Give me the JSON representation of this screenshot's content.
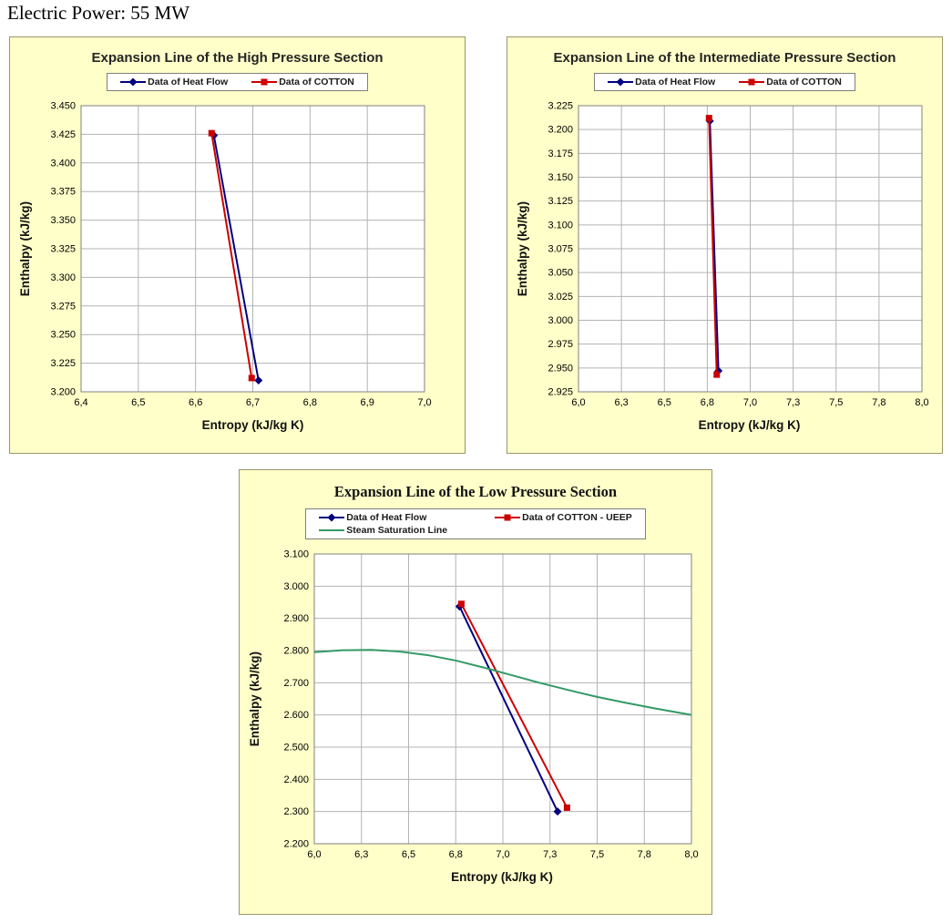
{
  "header": {
    "text": "Electric Power: 55 MW"
  },
  "colors": {
    "panel_bg": "#FFFFC9",
    "panel_border": "#97976B",
    "plot_bg": "#FFFFFF",
    "plot_border": "#808080",
    "grid": "#B3B3B3",
    "heat_flow": "#000080",
    "cotton": "#CC0000",
    "saturation": "#339966",
    "legend_border": "#7F7F7F"
  },
  "chart_data": [
    {
      "type": "line",
      "title": "Expansion Line of the High Pressure Section",
      "xlabel": "Entropy (kJ/kg K)",
      "ylabel": "Enthalpy (kJ/kg)",
      "xlim": [
        6.4,
        7.0
      ],
      "ylim": [
        3200,
        3450
      ],
      "grid": true,
      "legend_position": "top",
      "x_ticks": [
        {
          "v": 6.4,
          "label": "6,4"
        },
        {
          "v": 6.5,
          "label": "6,5"
        },
        {
          "v": 6.6,
          "label": "6,6"
        },
        {
          "v": 6.7,
          "label": "6,7"
        },
        {
          "v": 6.8,
          "label": "6,8"
        },
        {
          "v": 6.9,
          "label": "6,9"
        },
        {
          "v": 7.0,
          "label": "7,0"
        }
      ],
      "y_ticks": [
        {
          "v": 3450,
          "label": "3.450"
        },
        {
          "v": 3425,
          "label": "3.425"
        },
        {
          "v": 3400,
          "label": "3.400"
        },
        {
          "v": 3375,
          "label": "3.375"
        },
        {
          "v": 3350,
          "label": "3.350"
        },
        {
          "v": 3325,
          "label": "3.325"
        },
        {
          "v": 3300,
          "label": "3.300"
        },
        {
          "v": 3275,
          "label": "3.275"
        },
        {
          "v": 3250,
          "label": "3.250"
        },
        {
          "v": 3225,
          "label": "3.225"
        },
        {
          "v": 3200,
          "label": "3.200"
        }
      ],
      "series": [
        {
          "name": "Data of Heat Flow",
          "color": "#000080",
          "marker": "diamond",
          "points": [
            [
              6.632,
              3424
            ],
            [
              6.71,
              3210
            ]
          ]
        },
        {
          "name": "Data of COTTON",
          "color": "#CC0000",
          "marker": "square",
          "points": [
            [
              6.628,
              3426
            ],
            [
              6.698,
              3212
            ]
          ]
        }
      ]
    },
    {
      "type": "line",
      "title": "Expansion Line of the Intermediate Pressure Section",
      "xlabel": "Entropy (kJ/kg K)",
      "ylabel": "Enthalpy (kJ/kg)",
      "xlim": [
        6.0,
        8.0
      ],
      "ylim": [
        2925,
        3225
      ],
      "grid": true,
      "legend_position": "top",
      "x_ticks": [
        {
          "v": 6.0,
          "label": "6,0"
        },
        {
          "v": 6.25,
          "label": "6,3"
        },
        {
          "v": 6.5,
          "label": "6,5"
        },
        {
          "v": 6.75,
          "label": "6,8"
        },
        {
          "v": 7.0,
          "label": "7,0"
        },
        {
          "v": 7.25,
          "label": "7,3"
        },
        {
          "v": 7.5,
          "label": "7,5"
        },
        {
          "v": 7.75,
          "label": "7,8"
        },
        {
          "v": 8.0,
          "label": "8,0"
        }
      ],
      "y_ticks": [
        {
          "v": 3225,
          "label": "3.225"
        },
        {
          "v": 3200,
          "label": "3.200"
        },
        {
          "v": 3175,
          "label": "3.175"
        },
        {
          "v": 3150,
          "label": "3.150"
        },
        {
          "v": 3125,
          "label": "3.125"
        },
        {
          "v": 3100,
          "label": "3.100"
        },
        {
          "v": 3075,
          "label": "3.075"
        },
        {
          "v": 3050,
          "label": "3.050"
        },
        {
          "v": 3025,
          "label": "3.025"
        },
        {
          "v": 3000,
          "label": "3.000"
        },
        {
          "v": 2975,
          "label": "2.975"
        },
        {
          "v": 2950,
          "label": "2.950"
        },
        {
          "v": 2925,
          "label": "2.925"
        }
      ],
      "series": [
        {
          "name": "Data of Heat Flow",
          "color": "#000080",
          "marker": "diamond",
          "points": [
            [
              6.765,
              3209
            ],
            [
              6.815,
              2947
            ]
          ]
        },
        {
          "name": "Data of COTTON",
          "color": "#CC0000",
          "marker": "square",
          "points": [
            [
              6.76,
              3212
            ],
            [
              6.805,
              2943
            ]
          ]
        }
      ]
    },
    {
      "type": "line",
      "title": "Expansion Line of the Low Pressure Section",
      "xlabel": "Entropy (kJ/kg K)",
      "ylabel": "Enthalpy (kJ/kg)",
      "xlim": [
        6.0,
        8.0
      ],
      "ylim": [
        2200,
        3100
      ],
      "grid": true,
      "legend_position": "top",
      "x_ticks": [
        {
          "v": 6.0,
          "label": "6,0"
        },
        {
          "v": 6.25,
          "label": "6,3"
        },
        {
          "v": 6.5,
          "label": "6,5"
        },
        {
          "v": 6.75,
          "label": "6,8"
        },
        {
          "v": 7.0,
          "label": "7,0"
        },
        {
          "v": 7.25,
          "label": "7,3"
        },
        {
          "v": 7.5,
          "label": "7,5"
        },
        {
          "v": 7.75,
          "label": "7,8"
        },
        {
          "v": 8.0,
          "label": "8,0"
        }
      ],
      "y_ticks": [
        {
          "v": 3100,
          "label": "3.100"
        },
        {
          "v": 3000,
          "label": "3.000"
        },
        {
          "v": 2900,
          "label": "2.900"
        },
        {
          "v": 2800,
          "label": "2.800"
        },
        {
          "v": 2700,
          "label": "2.700"
        },
        {
          "v": 2600,
          "label": "2.600"
        },
        {
          "v": 2500,
          "label": "2.500"
        },
        {
          "v": 2400,
          "label": "2.400"
        },
        {
          "v": 2300,
          "label": "2.300"
        },
        {
          "v": 2200,
          "label": "2.200"
        }
      ],
      "series": [
        {
          "name": "Data of Heat Flow",
          "color": "#000080",
          "marker": "diamond",
          "points": [
            [
              6.77,
              2937
            ],
            [
              7.29,
              2300
            ]
          ]
        },
        {
          "name": "Data of COTTON - UEEP",
          "color": "#CC0000",
          "marker": "square",
          "points": [
            [
              6.78,
              2945
            ],
            [
              7.34,
              2312
            ]
          ]
        },
        {
          "name": "Steam Saturation Line",
          "color": "#339966",
          "marker": "none",
          "points": [
            [
              6.0,
              2795
            ],
            [
              6.15,
              2801
            ],
            [
              6.3,
              2802
            ],
            [
              6.45,
              2797
            ],
            [
              6.6,
              2786
            ],
            [
              6.75,
              2769
            ],
            [
              6.9,
              2747
            ],
            [
              7.05,
              2723
            ],
            [
              7.2,
              2699
            ],
            [
              7.35,
              2677
            ],
            [
              7.5,
              2656
            ],
            [
              7.65,
              2638
            ],
            [
              7.8,
              2621
            ],
            [
              8.0,
              2600
            ]
          ]
        }
      ]
    }
  ]
}
